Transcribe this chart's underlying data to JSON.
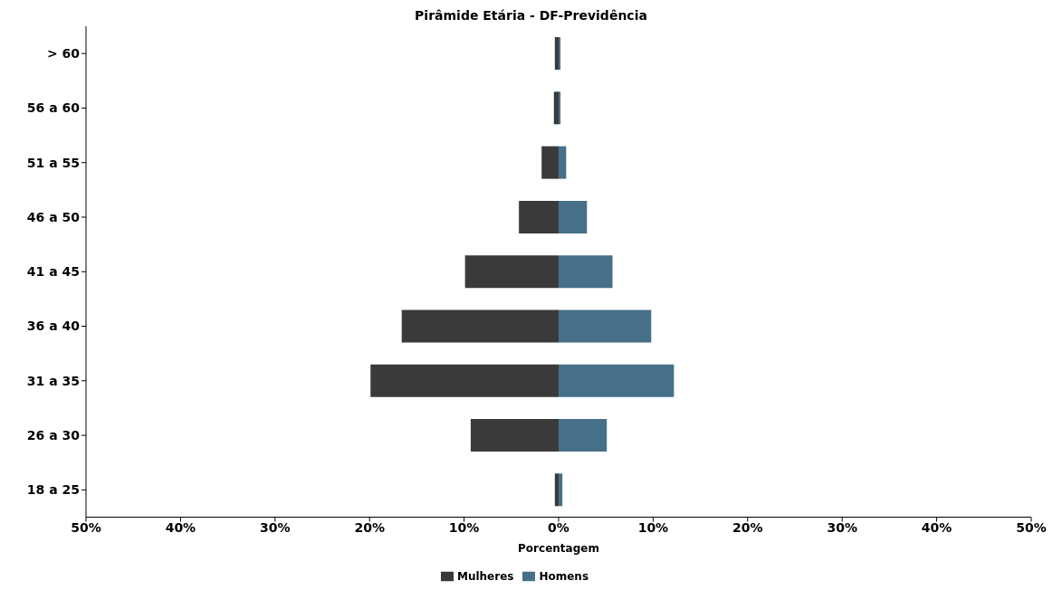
{
  "chart_data": {
    "type": "bar",
    "orientation": "horizontal",
    "stacked": true,
    "title": "Pirâmide Etária - DF-Previdência",
    "xlabel": "Porcentagem",
    "categories": [
      "> 60",
      "56 a 60",
      "51 a 55",
      "46 a 50",
      "41 a 45",
      "36 a 40",
      "31 a 35",
      "26 a 30",
      "18 a 25"
    ],
    "series": [
      {
        "name": "Mulheres",
        "color": "#3b3a3b",
        "values": [
          -0.4,
          -0.5,
          -1.8,
          -4.2,
          -9.9,
          -16.6,
          -19.9,
          -9.3,
          -0.4
        ]
      },
      {
        "name": "Homens",
        "color": "#467089",
        "values": [
          0.2,
          0.2,
          0.8,
          3.0,
          5.7,
          9.8,
          12.2,
          5.1,
          0.4
        ]
      }
    ],
    "xlim": [
      -50,
      50
    ],
    "xticks": [
      {
        "value": -50,
        "label": "50%"
      },
      {
        "value": -40,
        "label": "40%"
      },
      {
        "value": -30,
        "label": "30%"
      },
      {
        "value": -20,
        "label": "20%"
      },
      {
        "value": -10,
        "label": "10%"
      },
      {
        "value": 0,
        "label": "0%"
      },
      {
        "value": 10,
        "label": "10%"
      },
      {
        "value": 20,
        "label": "20%"
      },
      {
        "value": 30,
        "label": "30%"
      },
      {
        "value": 40,
        "label": "40%"
      },
      {
        "value": 50,
        "label": "50%"
      }
    ],
    "grid": false,
    "legend": "bottom"
  }
}
